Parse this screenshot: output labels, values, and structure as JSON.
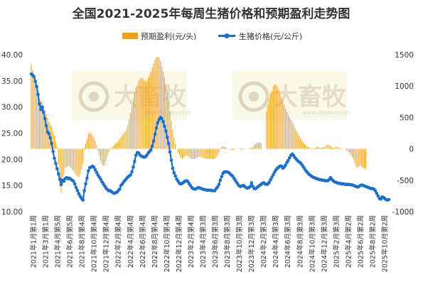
{
  "chart_data": {
    "type": "bar+line",
    "title": "全国2021-2025年每周生猪价格和预期盈利走势图",
    "watermark": {
      "brand": "大畜牧",
      "url": "www.dxumu.com"
    },
    "legend": {
      "placement": "top",
      "items": [
        {
          "name": "预期盈利(元/头)",
          "color": "#f0a020",
          "type": "bar"
        },
        {
          "name": "生猪价格(元/公斤)",
          "color": "#1f6fc8",
          "type": "line"
        }
      ]
    },
    "y_left": {
      "min": 10,
      "max": 40,
      "ticks": [
        "10.00",
        "15.00",
        "20.00",
        "25.00",
        "30.00",
        "35.00",
        "40.00"
      ]
    },
    "y_right": {
      "min": -1000,
      "max": 1500,
      "ticks": [
        "-1000",
        "-500",
        "0",
        "500",
        "1000",
        "1500"
      ]
    },
    "x_labels": [
      "2021年1月第1周",
      "2021年3月第1周",
      "2021年4月第5周",
      "2021年6月第5周",
      "2021年8月第4周",
      "2021年10月第4周",
      "2021年12月第4周",
      "2022年2月第4周",
      "2022年4月第4周",
      "2022年6月第4周",
      "2022年8月第4周",
      "2022年10月第4周",
      "2022年12月第4周",
      "2023年2月第4周",
      "2023年4月第3周",
      "2023年6月第3周",
      "2023年8月第3周",
      "2023年10月第3周",
      "2023年12月第3周",
      "2024年2月第3周",
      "2024年4月第3周",
      "2024年6月第3周",
      "2024年8月第3周",
      "2024年10月第3周",
      "2024年12月第3周",
      "2025年2月第3周",
      "2025年4月第2周",
      "2025年6月第2周",
      "2025年8月第2周",
      "2025年10月第2周"
    ],
    "price": [
      36.3,
      36.1,
      35.8,
      34.9,
      33.9,
      32.4,
      30.6,
      29.5,
      30.0,
      29.0,
      27.8,
      26.4,
      25.2,
      24.9,
      24.1,
      23.0,
      21.5,
      20.2,
      19.2,
      18.2,
      17.2,
      16.2,
      15.2,
      16.0,
      15.8,
      16.3,
      16.5,
      16.3,
      16.4,
      16.2,
      16.0,
      15.8,
      15.3,
      14.6,
      14.0,
      13.4,
      12.9,
      12.5,
      12.2,
      14.0,
      15.3,
      16.4,
      17.8,
      18.4,
      18.5,
      18.7,
      18.5,
      18.0,
      17.5,
      17.0,
      16.6,
      16.2,
      15.7,
      15.3,
      14.9,
      14.5,
      14.2,
      14.0,
      14.0,
      13.8,
      13.6,
      13.5,
      13.6,
      13.7,
      14.0,
      14.3,
      15.0,
      15.3,
      15.7,
      16.0,
      16.3,
      16.6,
      16.8,
      17.0,
      17.6,
      18.5,
      19.6,
      20.8,
      21.3,
      21.2,
      20.8,
      20.6,
      20.5,
      20.4,
      20.5,
      20.8,
      21.2,
      21.5,
      21.8,
      22.5,
      23.5,
      24.8,
      26.0,
      27.0,
      27.6,
      28.0,
      27.8,
      27.2,
      26.3,
      25.4,
      24.2,
      23.0,
      21.4,
      19.8,
      18.3,
      17.4,
      16.8,
      16.2,
      15.8,
      15.4,
      15.3,
      15.4,
      15.6,
      15.8,
      15.9,
      15.8,
      15.4,
      15.0,
      14.6,
      14.4,
      14.3,
      14.3,
      14.5,
      14.6,
      14.5,
      14.4,
      14.3,
      14.2,
      14.2,
      14.1,
      14.1,
      14.1,
      14.1,
      14.0,
      14.0,
      14.0,
      14.4,
      14.7,
      15.2,
      16.0,
      16.7,
      17.3,
      17.6,
      17.6,
      17.6,
      17.5,
      17.3,
      17.0,
      16.8,
      16.4,
      16.0,
      15.6,
      15.2,
      14.9,
      14.8,
      14.9,
      15.0,
      14.8,
      14.6,
      14.5,
      14.6,
      14.8,
      15.5,
      14.8,
      14.4,
      14.4,
      14.6,
      14.8,
      15.0,
      15.2,
      15.4,
      15.5,
      15.3,
      15.2,
      15.3,
      15.6,
      16.1,
      16.6,
      17.1,
      17.6,
      18.0,
      18.3,
      18.5,
      18.7,
      18.7,
      18.3,
      18.5,
      18.9,
      19.4,
      19.8,
      20.3,
      20.8,
      21.0,
      20.7,
      20.3,
      20.0,
      19.7,
      19.5,
      19.3,
      19.0,
      18.6,
      18.2,
      17.8,
      17.5,
      17.2,
      17.0,
      16.8,
      16.6,
      16.5,
      16.4,
      16.3,
      16.2,
      16.1,
      16.1,
      16.0,
      16.0,
      15.9,
      15.9,
      15.9,
      16.1,
      16.5,
      16.2,
      15.9,
      15.7,
      15.6,
      15.5,
      15.4,
      15.4,
      15.3,
      15.3,
      15.3,
      15.2,
      15.2,
      15.2,
      15.2,
      15.1,
      15.1,
      15.0,
      14.9,
      14.8,
      14.7,
      14.8,
      15.0,
      15.1,
      15.0,
      14.9,
      14.8,
      14.7,
      14.6,
      14.5,
      14.4,
      14.4,
      14.3,
      14.0,
      13.5,
      13.0,
      12.5,
      12.4,
      12.8,
      12.7,
      12.5,
      12.3,
      12.2,
      12.3
    ],
    "profit": [
      1350,
      1250,
      1170,
      1090,
      990,
      890,
      790,
      770,
      740,
      690,
      620,
      560,
      490,
      430,
      390,
      350,
      270,
      210,
      110,
      30,
      -250,
      -600,
      -700,
      -580,
      -410,
      -300,
      -290,
      -280,
      -270,
      -300,
      -320,
      -350,
      -380,
      -410,
      -440,
      -450,
      -400,
      -330,
      -230,
      20,
      80,
      160,
      230,
      260,
      250,
      220,
      180,
      120,
      60,
      -30,
      -110,
      -180,
      -240,
      -270,
      -260,
      -200,
      -120,
      -60,
      -10,
      20,
      40,
      60,
      80,
      100,
      130,
      160,
      190,
      220,
      250,
      280,
      320,
      380,
      470,
      570,
      680,
      800,
      900,
      980,
      1020,
      1080,
      1120,
      1140,
      1120,
      1090,
      1070,
      1090,
      1130,
      1170,
      1230,
      1300,
      1360,
      1420,
      1460,
      1470,
      1450,
      1400,
      1320,
      1230,
      1140,
      1030,
      900,
      760,
      600,
      440,
      300,
      180,
      80,
      0,
      -60,
      -100,
      -140,
      -160,
      -140,
      -120,
      -110,
      -115,
      -130,
      -150,
      -160,
      -165,
      -160,
      -150,
      -140,
      -130,
      -120,
      -130,
      -140,
      -150,
      -155,
      -160,
      -160,
      -155,
      -160,
      -165,
      -160,
      -150,
      -130,
      -100,
      -60,
      -10,
      30,
      40,
      30,
      20,
      10,
      0,
      -10,
      -20,
      -20,
      -20,
      -10,
      0,
      5,
      0,
      -10,
      -15,
      -10,
      -5,
      0,
      0,
      5,
      10,
      20,
      30,
      60,
      80,
      90,
      100,
      100,
      90,
      0,
      0,
      0,
      600,
      700,
      800,
      880,
      920,
      1000,
      1030,
      1020,
      990,
      940,
      880,
      820,
      760,
      700,
      640,
      590,
      540,
      500,
      460,
      420,
      380,
      330,
      290,
      250,
      210,
      170,
      130,
      100,
      80,
      60,
      40,
      30,
      20,
      10,
      10,
      10,
      20,
      30,
      30,
      20,
      15,
      20,
      30,
      40,
      60,
      70,
      60,
      50,
      30,
      20,
      20,
      30,
      30,
      20,
      15,
      10,
      5,
      0,
      -10,
      -30,
      -50,
      -60,
      -90,
      -130,
      -170,
      -230,
      -290,
      -300,
      -280,
      -260,
      -280,
      -300,
      -310,
      -320
    ]
  }
}
